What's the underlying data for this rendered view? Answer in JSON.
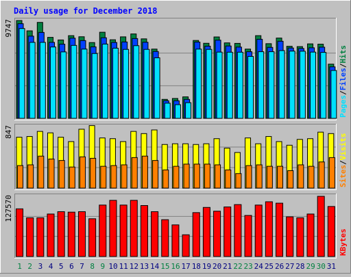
{
  "title": "Daily usage for December 2018",
  "colors": {
    "background": "#c0c0c0",
    "title": "#0000ff",
    "hits": "#008040",
    "files": "#0040ff",
    "pages": "#00e0ff",
    "visits": "#ffff00",
    "sites": "#ff8000",
    "kbytes": "#ff0000",
    "weekend_day": "#008040",
    "weekday_day": "#000080"
  },
  "chart_data": [
    {
      "type": "bar",
      "panel": "hits-files-pages",
      "max_label": "9747",
      "legend": [
        {
          "name": "Pages",
          "color": "#00e0ff"
        },
        {
          "name": "Files",
          "color": "#0040ff"
        },
        {
          "name": "Hits",
          "color": "#008040"
        }
      ],
      "categories": [
        "1",
        "2",
        "3",
        "4",
        "5",
        "6",
        "7",
        "8",
        "9",
        "10",
        "11",
        "12",
        "13",
        "14",
        "15",
        "16",
        "17",
        "18",
        "19",
        "20",
        "21",
        "22",
        "23",
        "24",
        "25",
        "26",
        "27",
        "28",
        "29",
        "30",
        "31"
      ],
      "series": [
        {
          "name": "Hits",
          "values": [
            9747,
            8720,
            9560,
            8070,
            7810,
            8240,
            8130,
            7550,
            8580,
            7830,
            8120,
            8410,
            7920,
            6900,
            1890,
            1980,
            2140,
            7760,
            7480,
            8110,
            7520,
            7470,
            6900,
            8240,
            7440,
            8000,
            7180,
            7150,
            7420,
            7390,
            5400
          ]
        },
        {
          "name": "Files",
          "values": [
            9430,
            8190,
            8560,
            7570,
            7390,
            7990,
            7750,
            7120,
            8030,
            7560,
            7610,
            7950,
            7580,
            6660,
            1750,
            1750,
            1890,
            7600,
            7190,
            7790,
            7210,
            7100,
            6640,
            7880,
            7070,
            7680,
            7010,
            6960,
            7030,
            7090,
            5130
          ]
        },
        {
          "name": "Pages",
          "values": [
            8950,
            7570,
            7570,
            7110,
            6620,
            7270,
            6900,
            6460,
            7400,
            6990,
            6870,
            7240,
            6870,
            6030,
            1510,
            1360,
            1560,
            6900,
            6870,
            6600,
            6590,
            6590,
            6170,
            6640,
            6640,
            6750,
            6700,
            6690,
            6600,
            6570,
            4770
          ]
        }
      ]
    },
    {
      "type": "bar",
      "panel": "visits-sites",
      "max_label": "847",
      "legend": [
        {
          "name": "Sites",
          "color": "#ff8000"
        },
        {
          "name": "Visits",
          "color": "#ffff00"
        }
      ],
      "categories": [
        "1",
        "2",
        "3",
        "4",
        "5",
        "6",
        "7",
        "8",
        "9",
        "10",
        "11",
        "12",
        "13",
        "14",
        "15",
        "16",
        "17",
        "18",
        "19",
        "20",
        "21",
        "22",
        "23",
        "24",
        "25",
        "26",
        "27",
        "28",
        "29",
        "30",
        "31"
      ],
      "series": [
        {
          "name": "Visits",
          "values": [
            700,
            710,
            780,
            760,
            700,
            640,
            810,
            860,
            690,
            680,
            640,
            780,
            750,
            800,
            600,
            610,
            610,
            600,
            610,
            680,
            550,
            490,
            690,
            610,
            710,
            640,
            590,
            670,
            680,
            770,
            750
          ]
        },
        {
          "name": "Sites",
          "values": [
            310,
            320,
            440,
            400,
            380,
            290,
            430,
            410,
            300,
            310,
            320,
            420,
            440,
            380,
            250,
            300,
            330,
            330,
            330,
            320,
            250,
            200,
            310,
            320,
            300,
            300,
            240,
            320,
            300,
            360,
            420
          ]
        }
      ]
    },
    {
      "type": "bar",
      "panel": "kbytes",
      "max_label": "127570",
      "legend": [
        {
          "name": "KBytes",
          "color": "#ff0000"
        }
      ],
      "categories": [
        "1",
        "2",
        "3",
        "4",
        "5",
        "6",
        "7",
        "8",
        "9",
        "10",
        "11",
        "12",
        "13",
        "14",
        "15",
        "16",
        "17",
        "18",
        "19",
        "20",
        "21",
        "22",
        "23",
        "24",
        "25",
        "26",
        "27",
        "28",
        "29",
        "30",
        "31"
      ],
      "series": [
        {
          "name": "KBytes",
          "values": [
            101000,
            82000,
            82000,
            90000,
            95000,
            94000,
            95000,
            80000,
            109000,
            119000,
            109000,
            119000,
            108000,
            95000,
            78000,
            67000,
            46000,
            93000,
            104000,
            96000,
            105000,
            110000,
            87000,
            109000,
            116000,
            113000,
            84000,
            82000,
            90000,
            127570,
            106000
          ]
        }
      ]
    }
  ],
  "days": [
    {
      "label": "1",
      "weekend": true
    },
    {
      "label": "2",
      "weekend": true
    },
    {
      "label": "3",
      "weekend": false
    },
    {
      "label": "4",
      "weekend": false
    },
    {
      "label": "5",
      "weekend": false
    },
    {
      "label": "6",
      "weekend": false
    },
    {
      "label": "7",
      "weekend": false
    },
    {
      "label": "8",
      "weekend": true
    },
    {
      "label": "9",
      "weekend": true
    },
    {
      "label": "10",
      "weekend": false
    },
    {
      "label": "11",
      "weekend": false
    },
    {
      "label": "12",
      "weekend": false
    },
    {
      "label": "13",
      "weekend": false
    },
    {
      "label": "14",
      "weekend": false
    },
    {
      "label": "15",
      "weekend": true
    },
    {
      "label": "16",
      "weekend": true
    },
    {
      "label": "17",
      "weekend": false
    },
    {
      "label": "18",
      "weekend": false
    },
    {
      "label": "19",
      "weekend": false
    },
    {
      "label": "20",
      "weekend": false
    },
    {
      "label": "21",
      "weekend": false
    },
    {
      "label": "22",
      "weekend": true
    },
    {
      "label": "23",
      "weekend": true
    },
    {
      "label": "24",
      "weekend": false
    },
    {
      "label": "25",
      "weekend": false
    },
    {
      "label": "26",
      "weekend": false
    },
    {
      "label": "27",
      "weekend": false
    },
    {
      "label": "28",
      "weekend": false
    },
    {
      "label": "29",
      "weekend": true
    },
    {
      "label": "30",
      "weekend": true
    },
    {
      "label": "31",
      "weekend": false
    }
  ]
}
